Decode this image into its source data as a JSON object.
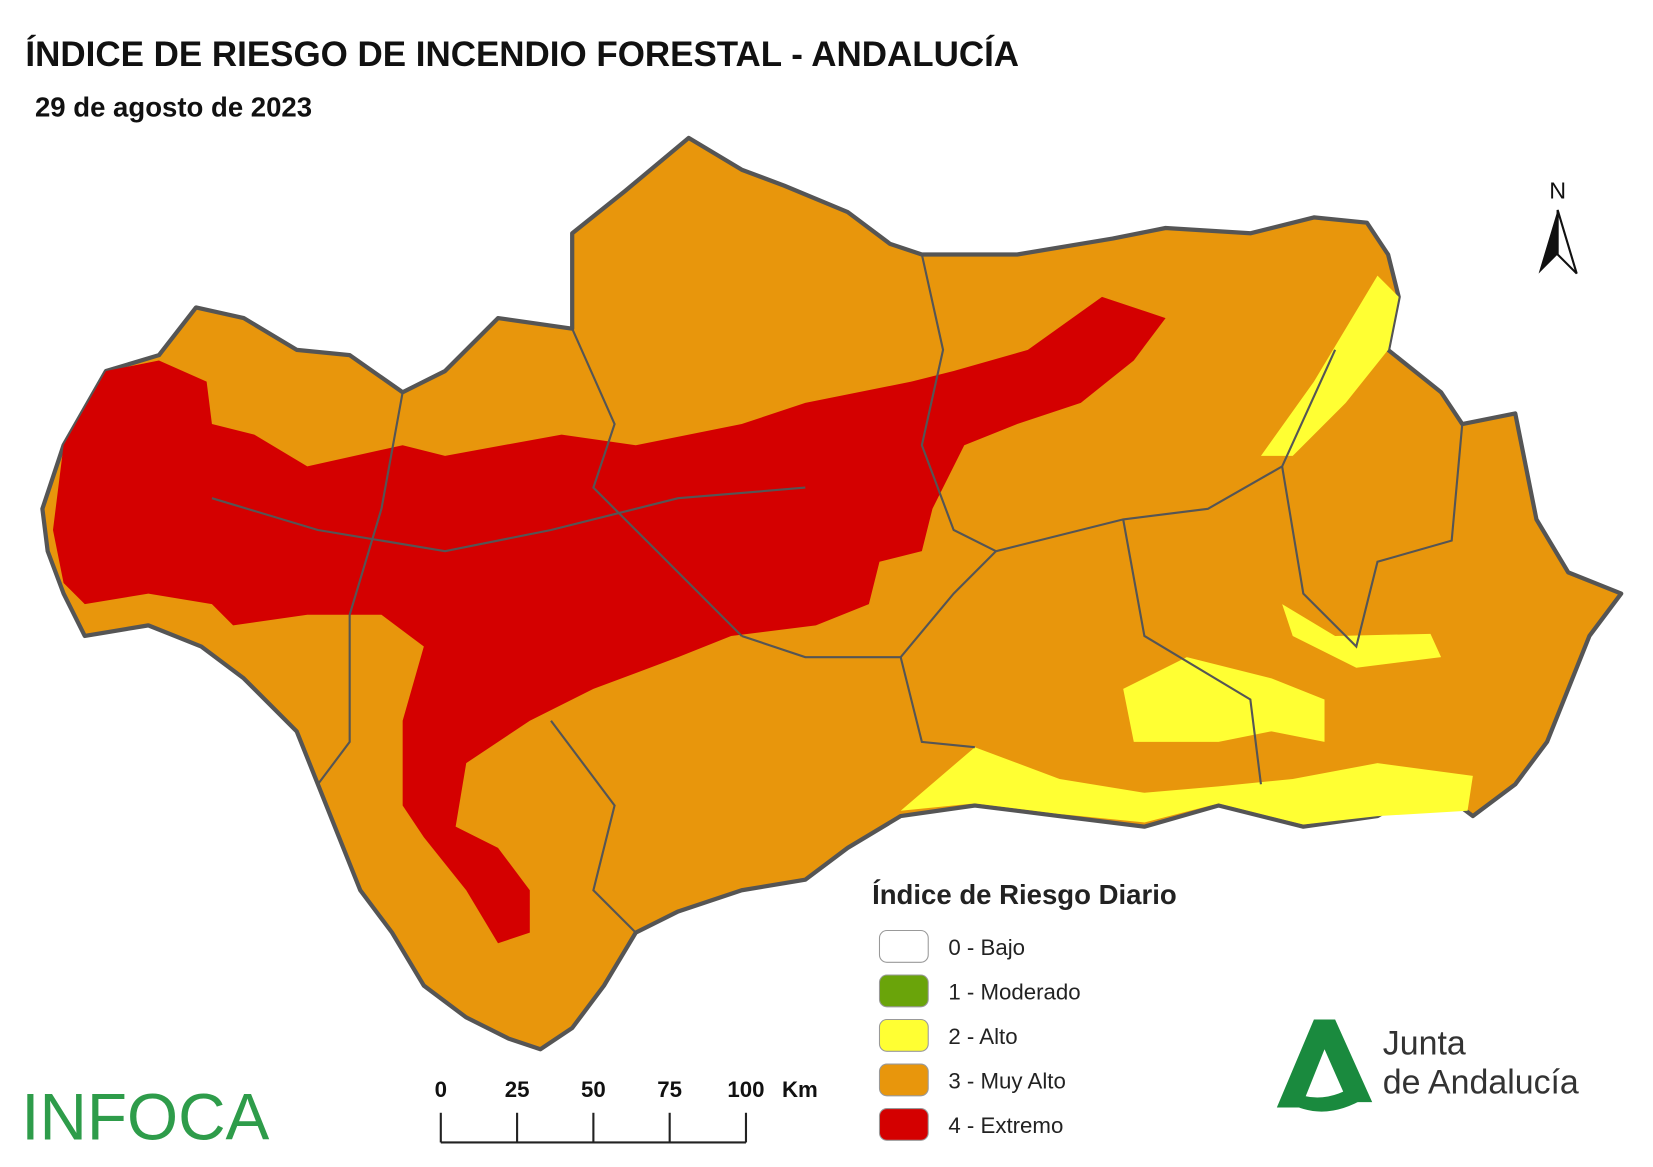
{
  "header": {
    "title": "ÍNDICE DE RIESGO DE INCENDIO FORESTAL - ANDALUCÍA",
    "subtitle": "29 de agosto de 2023"
  },
  "north": "N",
  "legend": {
    "title": "Índice de Riesgo Diario",
    "items": [
      {
        "label": "0 - Bajo",
        "color": "#ffffff"
      },
      {
        "label": "1 - Moderado",
        "color": "#6aa40a"
      },
      {
        "label": "2 - Alto",
        "color": "#ffff33"
      },
      {
        "label": "3 - Muy Alto",
        "color": "#e8960c"
      },
      {
        "label": "4 - Extremo",
        "color": "#d40000"
      }
    ]
  },
  "scale_bar": {
    "ticks": [
      0,
      25,
      50,
      75,
      100
    ],
    "unit": "Km"
  },
  "logos": {
    "left": "INFOCA",
    "right_line1": "Junta",
    "right_line2": "de Andalucía"
  }
}
